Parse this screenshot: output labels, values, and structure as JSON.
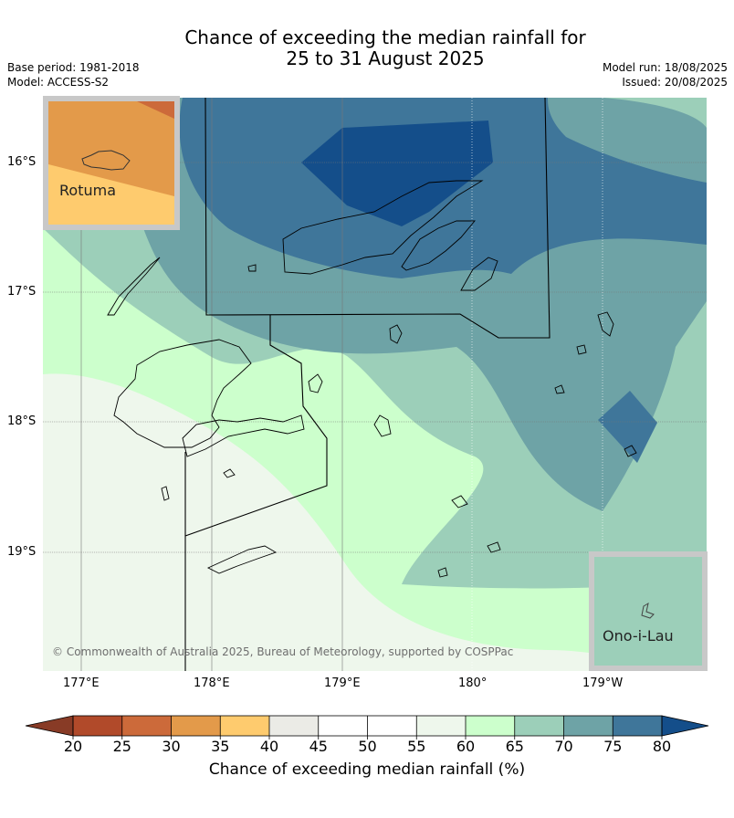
{
  "title_line1": "Chance of exceeding the median rainfall for",
  "title_line2": "25 to 31 August 2025",
  "base_period": "Base period: 1981-2018",
  "model": "Model: ACCESS-S2",
  "model_run": "Model run: 18/08/2025",
  "issued": "Issued: 20/08/2025",
  "lat_labels": [
    "16°S",
    "17°S",
    "18°S",
    "19°S"
  ],
  "lon_labels": [
    "177°E",
    "178°E",
    "179°E",
    "180°",
    "179°W"
  ],
  "copyright": "© Commonwealth of Australia 2025, Bureau of Meteorology, supported by COSPPac",
  "inset_rotuma": "Rotuma",
  "inset_onoilau": "Ono-i-Lau",
  "colorbar": {
    "ticks": [
      "20",
      "25",
      "30",
      "35",
      "40",
      "45",
      "50",
      "55",
      "60",
      "65",
      "70",
      "75",
      "80"
    ],
    "label": "Chance of exceeding median rainfall (%)",
    "colors": [
      "#b14a2a",
      "#cc6a3a",
      "#e39a4a",
      "#fecb6e",
      "#ebebe6",
      "#ffffff",
      "#ffffff",
      "#eef7ec",
      "#ccffcc",
      "#9ccfb9",
      "#6ea3a6",
      "#3f769a"
    ],
    "under_color": "#883b26",
    "over_color": "#144e8a"
  },
  "map_colors": {
    "c40_45": "#ebebe6",
    "c55_60": "#eef7ec",
    "c60_65": "#ccffcc",
    "c65_70": "#9ccfb9",
    "c70_75": "#6ea3a6",
    "c75_80": "#3f769a",
    "c80_up": "#144e8a",
    "rotuma_30_35": "#e39a4a",
    "rotuma_35_40": "#fecb6e",
    "rotuma_25_30": "#cc6a3a"
  }
}
